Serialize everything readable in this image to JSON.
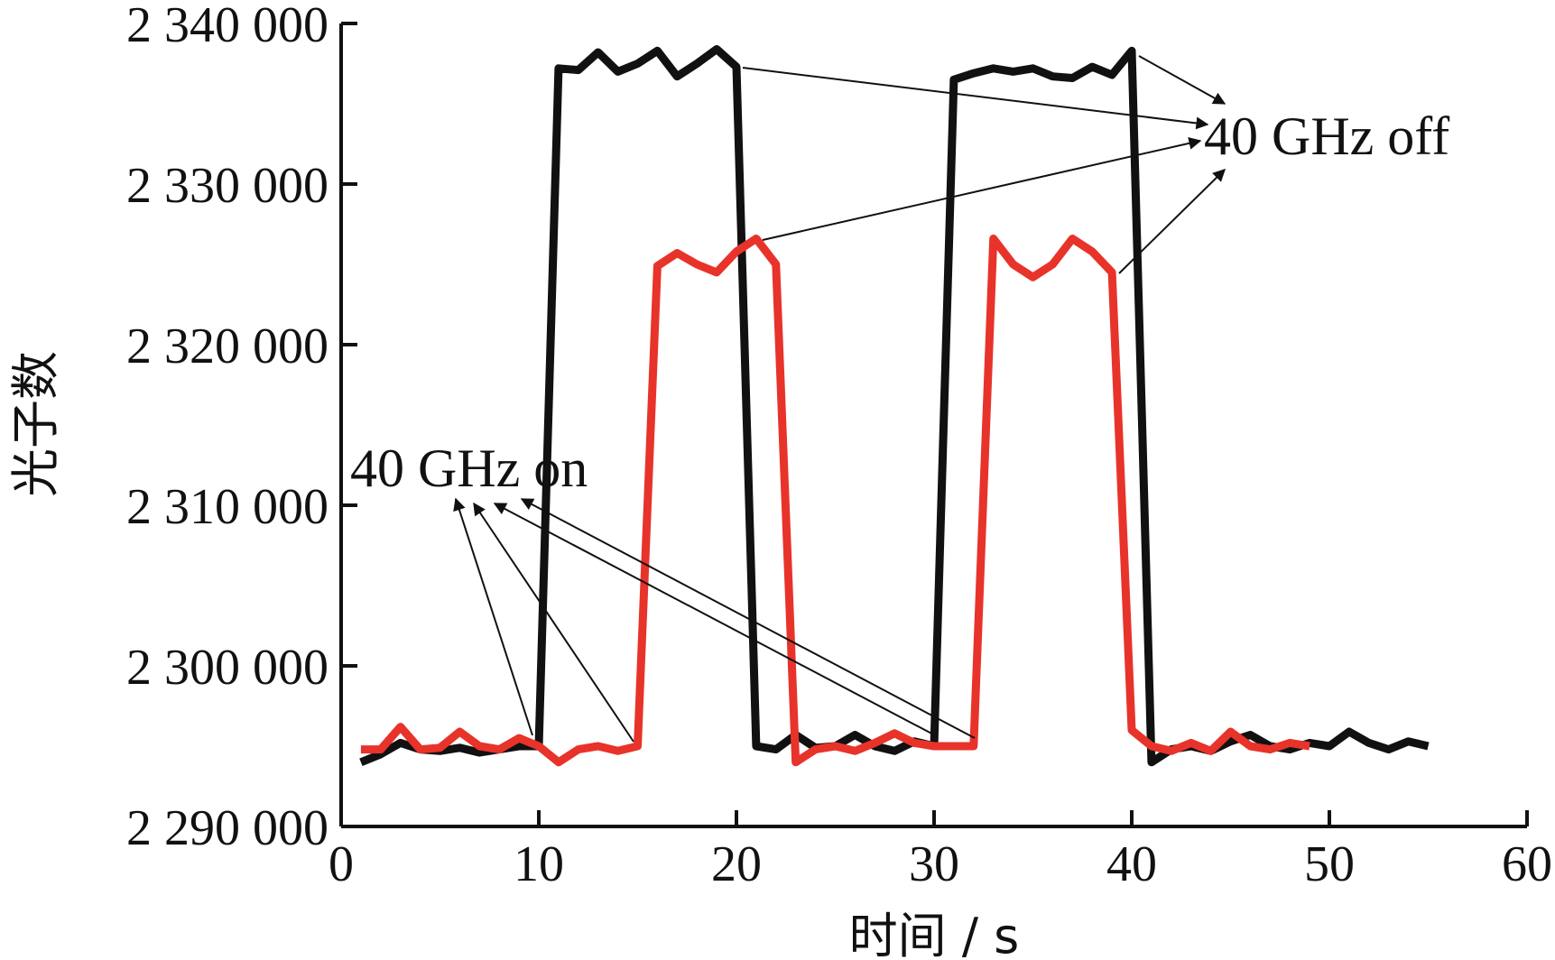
{
  "chart_data": {
    "type": "line",
    "xlabel": "时间 / s",
    "ylabel": "光子数",
    "xlim": [
      0,
      60
    ],
    "ylim": [
      2290000,
      2340000
    ],
    "x_ticks": [
      0,
      10,
      20,
      30,
      40,
      50,
      60
    ],
    "x_tick_labels": [
      "0",
      "10",
      "20",
      "30",
      "40",
      "50",
      "60"
    ],
    "y_ticks": [
      2290000,
      2300000,
      2310000,
      2320000,
      2330000,
      2340000
    ],
    "y_tick_labels": [
      "2 290 000",
      "2 300 000",
      "2 310 000",
      "2 320 000",
      "2 330 000",
      "2 340 000"
    ],
    "grid": false,
    "series": [
      {
        "color": "#111111",
        "points": [
          [
            1,
            2294000
          ],
          [
            2,
            2294500
          ],
          [
            3,
            2295200
          ],
          [
            4,
            2294800
          ],
          [
            5,
            2294700
          ],
          [
            6,
            2294900
          ],
          [
            7,
            2294600
          ],
          [
            8,
            2294800
          ],
          [
            9,
            2295000
          ],
          [
            10,
            2295000
          ],
          [
            11,
            2337200
          ],
          [
            12,
            2337100
          ],
          [
            13,
            2338200
          ],
          [
            14,
            2337000
          ],
          [
            15,
            2337500
          ],
          [
            16,
            2338300
          ],
          [
            17,
            2336700
          ],
          [
            18,
            2337500
          ],
          [
            19,
            2338400
          ],
          [
            20,
            2337300
          ],
          [
            21,
            2295000
          ],
          [
            22,
            2294800
          ],
          [
            23,
            2295700
          ],
          [
            24,
            2294900
          ],
          [
            25,
            2295000
          ],
          [
            26,
            2295700
          ],
          [
            27,
            2295000
          ],
          [
            28,
            2294700
          ],
          [
            29,
            2295300
          ],
          [
            30,
            2295000
          ],
          [
            31,
            2336500
          ],
          [
            32,
            2336900
          ],
          [
            33,
            2337200
          ],
          [
            34,
            2337000
          ],
          [
            35,
            2337200
          ],
          [
            36,
            2336700
          ],
          [
            37,
            2336600
          ],
          [
            38,
            2337300
          ],
          [
            39,
            2336800
          ],
          [
            40,
            2338300
          ],
          [
            41,
            2294000
          ],
          [
            42,
            2294800
          ],
          [
            43,
            2295000
          ],
          [
            44,
            2294700
          ],
          [
            45,
            2295300
          ],
          [
            46,
            2295700
          ],
          [
            47,
            2295000
          ],
          [
            48,
            2294800
          ],
          [
            49,
            2295200
          ],
          [
            50,
            2295000
          ],
          [
            51,
            2295900
          ],
          [
            52,
            2295200
          ],
          [
            53,
            2294800
          ],
          [
            54,
            2295300
          ],
          [
            55,
            2295000
          ]
        ]
      },
      {
        "color": "#e8332a",
        "points": [
          [
            1,
            2294800
          ],
          [
            2,
            2294800
          ],
          [
            3,
            2296200
          ],
          [
            4,
            2294800
          ],
          [
            5,
            2294900
          ],
          [
            6,
            2295900
          ],
          [
            7,
            2295000
          ],
          [
            8,
            2294800
          ],
          [
            9,
            2295500
          ],
          [
            10,
            2295000
          ],
          [
            11,
            2294000
          ],
          [
            12,
            2294800
          ],
          [
            13,
            2295000
          ],
          [
            14,
            2294700
          ],
          [
            15,
            2295000
          ],
          [
            16,
            2324900
          ],
          [
            17,
            2325700
          ],
          [
            18,
            2325000
          ],
          [
            19,
            2324500
          ],
          [
            20,
            2325800
          ],
          [
            21,
            2326600
          ],
          [
            22,
            2325000
          ],
          [
            23,
            2294000
          ],
          [
            24,
            2294800
          ],
          [
            25,
            2295000
          ],
          [
            26,
            2294700
          ],
          [
            27,
            2295200
          ],
          [
            28,
            2295800
          ],
          [
            29,
            2295200
          ],
          [
            30,
            2295000
          ],
          [
            31,
            2295000
          ],
          [
            32,
            2295000
          ],
          [
            33,
            2326600
          ],
          [
            34,
            2325000
          ],
          [
            35,
            2324200
          ],
          [
            36,
            2325000
          ],
          [
            37,
            2326600
          ],
          [
            38,
            2325800
          ],
          [
            39,
            2324500
          ],
          [
            40,
            2296000
          ],
          [
            41,
            2295000
          ],
          [
            42,
            2294700
          ],
          [
            43,
            2295200
          ],
          [
            44,
            2294700
          ],
          [
            45,
            2295900
          ],
          [
            46,
            2295000
          ],
          [
            47,
            2294800
          ],
          [
            48,
            2295200
          ],
          [
            49,
            2295000
          ]
        ]
      }
    ],
    "annotations": [
      {
        "text": "40 GHz off"
      },
      {
        "text": "40 GHz on"
      }
    ]
  }
}
